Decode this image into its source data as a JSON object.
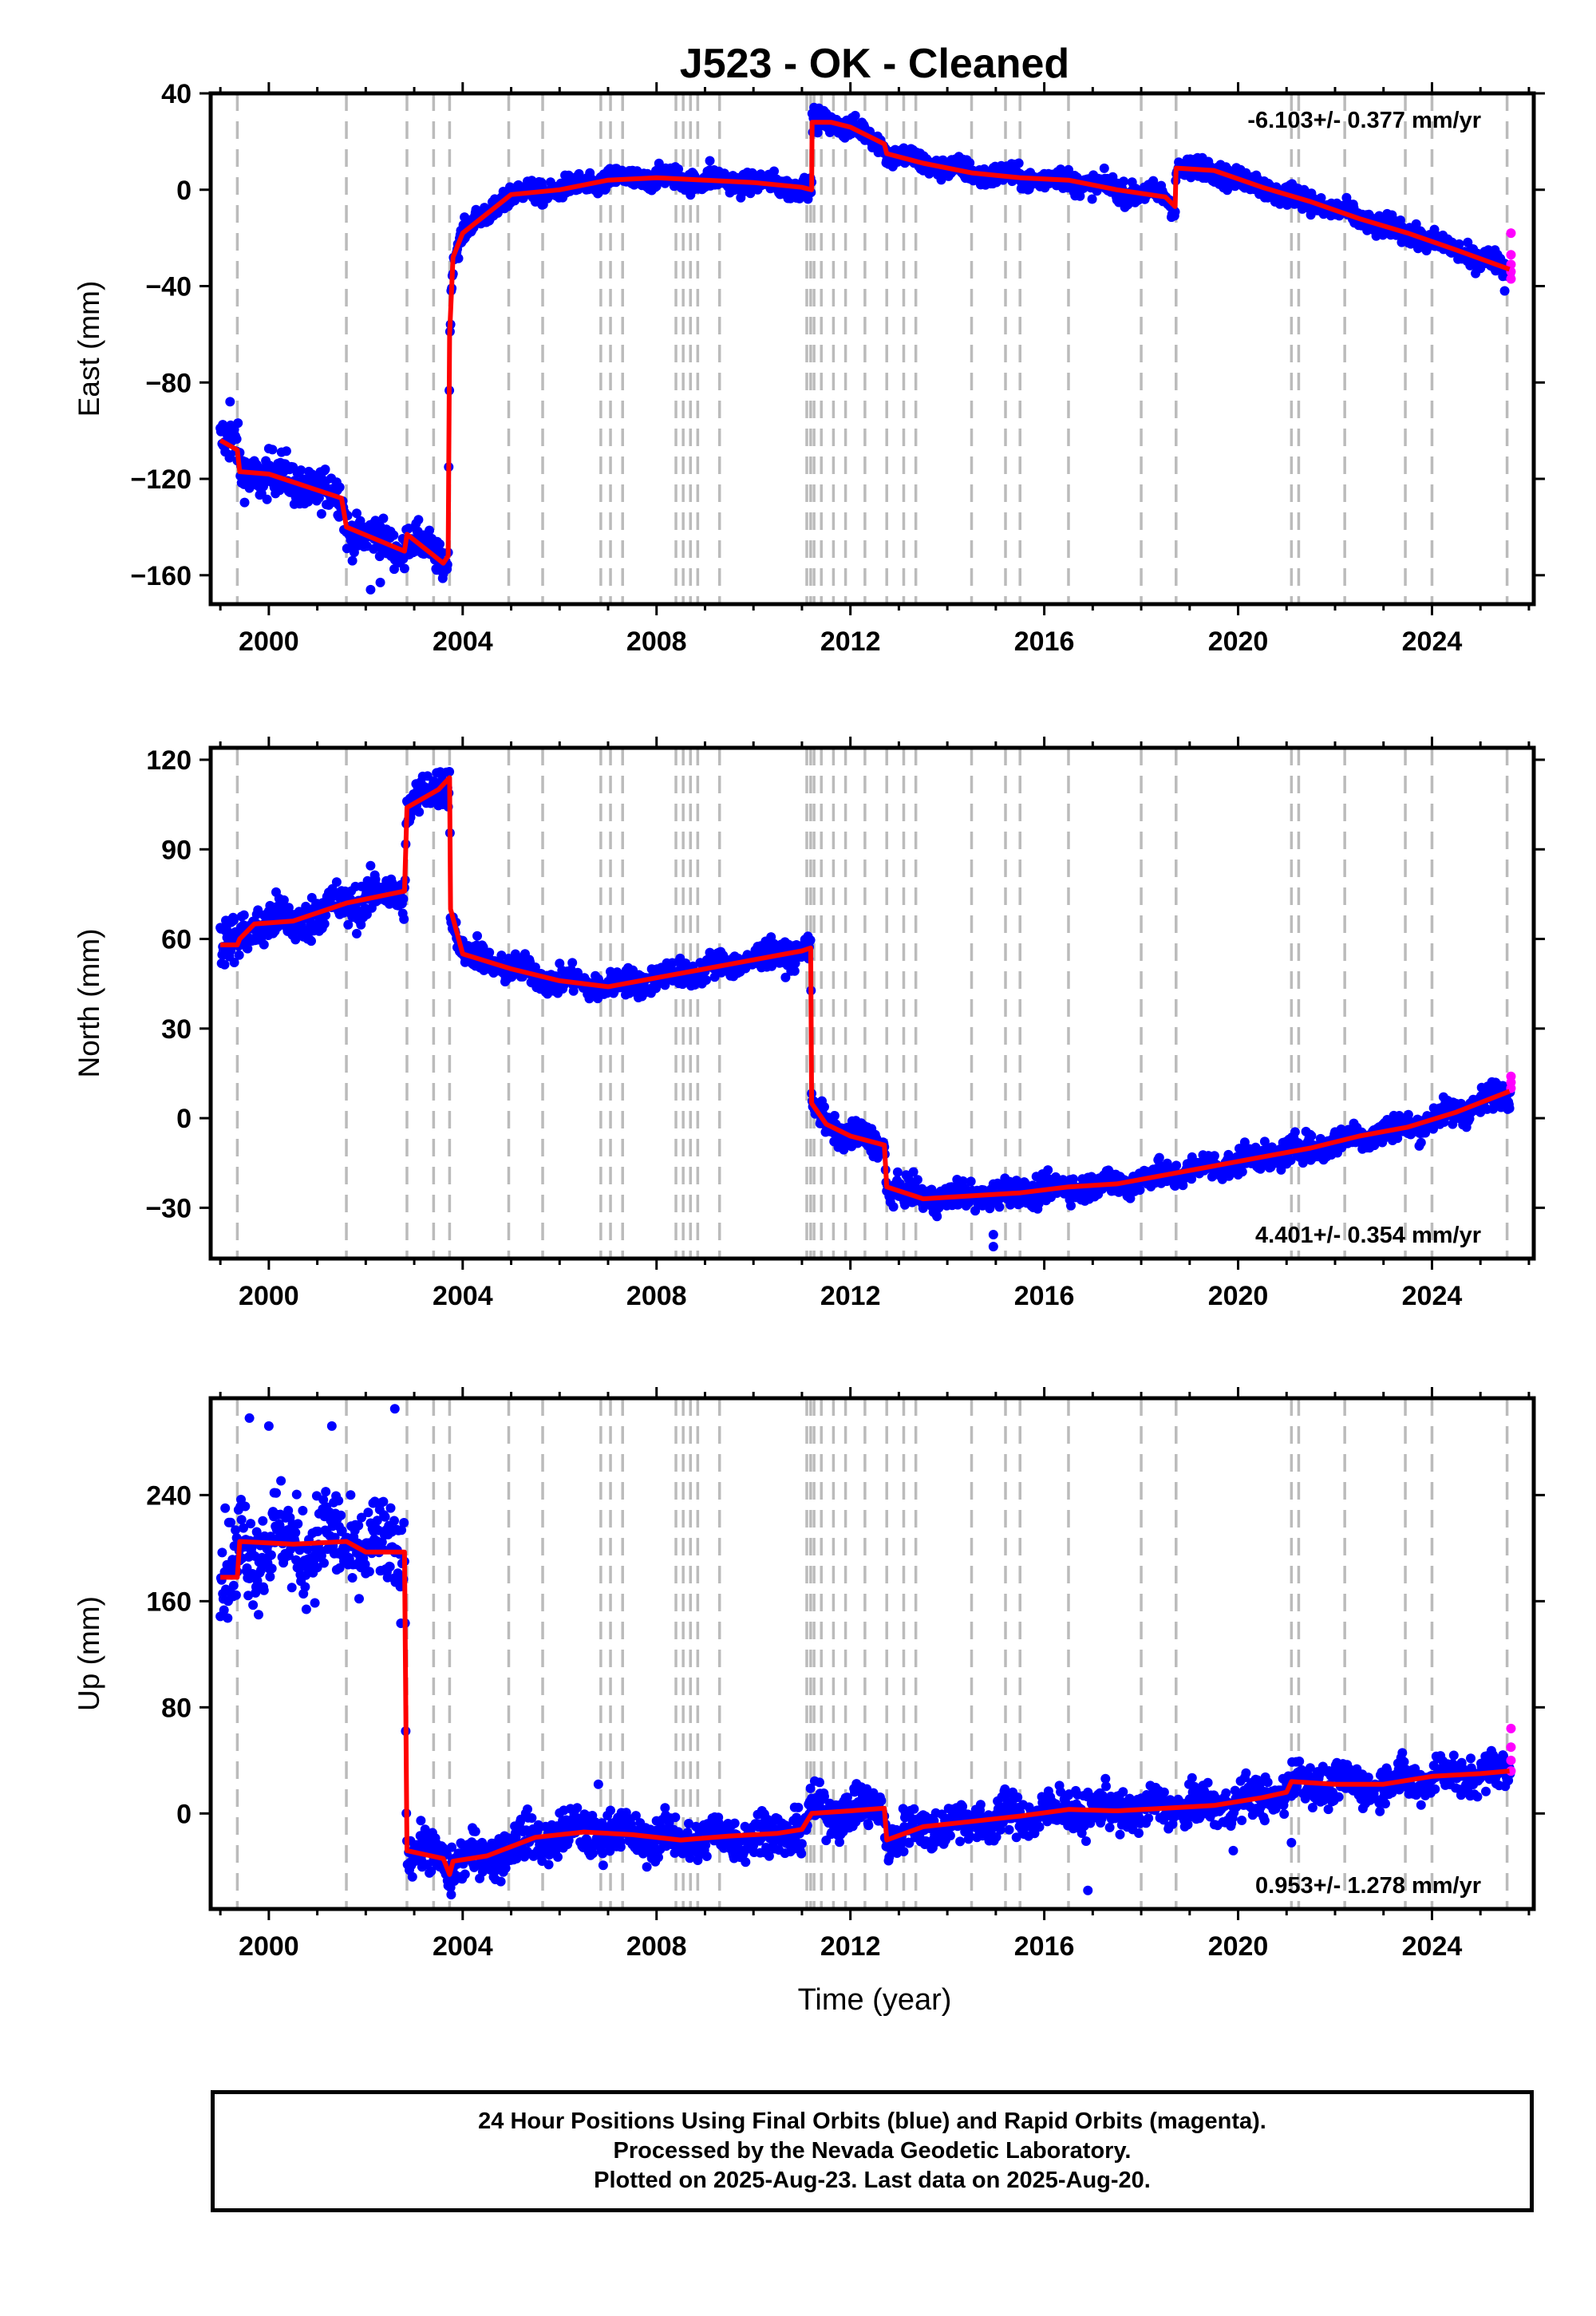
{
  "title": "J523  - OK - Cleaned",
  "x_label": "Time (year)",
  "footer": {
    "line1": "24 Hour Positions Using Final Orbits (blue) and Rapid Orbits (magenta).",
    "line2": "Processed by the Nevada Geodetic Laboratory.",
    "line3": "Plotted on 2025-Aug-23. Last data on 2025-Aug-20."
  },
  "colors": {
    "final_orbits": "#0000ff",
    "rapid_orbits": "#ff00ff",
    "model": "#ff0000",
    "event_lines": "#bbbbbb"
  },
  "chart_data": [
    {
      "type": "scatter",
      "component": "east",
      "ylabel": "East (mm)",
      "rate": "-6.103+/- 0.377 mm/yr",
      "rate_position": "top-right",
      "xlim": [
        1998.8,
        2026.1
      ],
      "ylim": [
        -172,
        40
      ],
      "xticks": [
        2000,
        2004,
        2008,
        2012,
        2016,
        2020,
        2024
      ],
      "yticks": [
        40,
        0,
        -40,
        -80,
        -120,
        -160
      ],
      "model_knots": [
        [
          1999.0,
          -104
        ],
        [
          1999.35,
          -108
        ],
        [
          1999.4,
          -117
        ],
        [
          2000,
          -118
        ],
        [
          2001.5,
          -128
        ],
        [
          2001.6,
          -140
        ],
        [
          2002.8,
          -150
        ],
        [
          2002.85,
          -143
        ],
        [
          2003.6,
          -155
        ],
        [
          2003.7,
          -152
        ],
        [
          2003.73,
          -60
        ],
        [
          2003.8,
          -28
        ],
        [
          2004.0,
          -18
        ],
        [
          2004.5,
          -10
        ],
        [
          2005.0,
          -2
        ],
        [
          2006.0,
          0
        ],
        [
          2007.0,
          4
        ],
        [
          2008.0,
          5
        ],
        [
          2009.0,
          4
        ],
        [
          2010.0,
          3
        ],
        [
          2011.0,
          1
        ],
        [
          2011.2,
          0
        ],
        [
          2011.21,
          28
        ],
        [
          2011.6,
          28
        ],
        [
          2012.0,
          26
        ],
        [
          2012.7,
          19
        ],
        [
          2012.75,
          15
        ],
        [
          2013.5,
          11
        ],
        [
          2014.5,
          7
        ],
        [
          2015.5,
          5
        ],
        [
          2016.5,
          4
        ],
        [
          2017.5,
          0
        ],
        [
          2018.5,
          -3
        ],
        [
          2018.7,
          -7
        ],
        [
          2018.72,
          9
        ],
        [
          2019.5,
          8
        ],
        [
          2020.5,
          1
        ],
        [
          2021.5,
          -5
        ],
        [
          2022.5,
          -12
        ],
        [
          2023.5,
          -18
        ],
        [
          2024.5,
          -25
        ],
        [
          2025.6,
          -33
        ]
      ],
      "spread": [
        [
          1999.0,
          9
        ],
        [
          2003.7,
          6
        ],
        [
          2003.8,
          4
        ],
        [
          2025.6,
          4
        ]
      ],
      "outliers": [
        [
          2002.1,
          -166
        ],
        [
          2002.3,
          -163
        ],
        [
          1999.2,
          -88
        ],
        [
          2009.1,
          12
        ],
        [
          2025.5,
          -42
        ]
      ],
      "rapid_points": [
        [
          2025.63,
          -18
        ],
        [
          2025.63,
          -27
        ],
        [
          2025.63,
          -31
        ],
        [
          2025.63,
          -34
        ],
        [
          2025.63,
          -37
        ]
      ],
      "events": [
        1999.35,
        2001.6,
        2002.85,
        2003.4,
        2003.73,
        2004.95,
        2005.65,
        2006.85,
        2007.05,
        2007.3,
        2008.4,
        2008.55,
        2008.7,
        2008.85,
        2009.3,
        2011.1,
        2011.18,
        2011.25,
        2011.4,
        2011.65,
        2011.9,
        2012.3,
        2012.75,
        2013.1,
        2013.35,
        2014.5,
        2015.2,
        2015.5,
        2016.5,
        2018.0,
        2018.72,
        2021.1,
        2021.25,
        2022.2,
        2023.45,
        2024.0,
        2025.55
      ]
    },
    {
      "type": "scatter",
      "component": "north",
      "ylabel": "North (mm)",
      "rate": "4.401+/- 0.354 mm/yr",
      "rate_position": "bottom-right",
      "xlim": [
        1998.8,
        2026.1
      ],
      "ylim": [
        -47,
        124
      ],
      "xticks": [
        2000,
        2004,
        2008,
        2012,
        2016,
        2020,
        2024
      ],
      "yticks": [
        120,
        90,
        60,
        30,
        0,
        -30
      ],
      "model_knots": [
        [
          1999.0,
          58
        ],
        [
          1999.35,
          58
        ],
        [
          1999.4,
          60
        ],
        [
          1999.7,
          65
        ],
        [
          2000.5,
          66
        ],
        [
          2001.6,
          72
        ],
        [
          2002.8,
          76
        ],
        [
          2002.85,
          104
        ],
        [
          2003.5,
          110
        ],
        [
          2003.73,
          114
        ],
        [
          2003.75,
          70
        ],
        [
          2004.0,
          55
        ],
        [
          2005.0,
          50
        ],
        [
          2006.0,
          46
        ],
        [
          2007.0,
          44
        ],
        [
          2008.0,
          47
        ],
        [
          2009.0,
          50
        ],
        [
          2010.0,
          53
        ],
        [
          2011.0,
          56
        ],
        [
          2011.18,
          57
        ],
        [
          2011.2,
          5
        ],
        [
          2011.5,
          -2
        ],
        [
          2012.0,
          -6
        ],
        [
          2012.7,
          -9
        ],
        [
          2012.75,
          -23
        ],
        [
          2013.5,
          -27
        ],
        [
          2014.5,
          -26
        ],
        [
          2015.5,
          -25
        ],
        [
          2016.5,
          -23
        ],
        [
          2017.5,
          -22
        ],
        [
          2018.5,
          -19
        ],
        [
          2019.5,
          -16
        ],
        [
          2020.5,
          -13
        ],
        [
          2021.5,
          -10
        ],
        [
          2022.5,
          -6
        ],
        [
          2023.5,
          -3
        ],
        [
          2024.5,
          2
        ],
        [
          2025.6,
          9
        ]
      ],
      "spread": [
        [
          1999.0,
          7
        ],
        [
          2003.7,
          6
        ],
        [
          2003.8,
          4
        ],
        [
          2025.6,
          4
        ]
      ],
      "outliers": [
        [
          2014.95,
          -39
        ],
        [
          2014.95,
          -43
        ],
        [
          2004.3,
          61
        ]
      ],
      "rapid_points": [
        [
          2025.63,
          10
        ],
        [
          2025.63,
          12
        ],
        [
          2025.63,
          14
        ]
      ],
      "events": [
        1999.35,
        2001.6,
        2002.85,
        2003.4,
        2003.73,
        2004.95,
        2005.65,
        2006.85,
        2007.05,
        2007.3,
        2008.4,
        2008.55,
        2008.7,
        2008.85,
        2009.3,
        2011.1,
        2011.18,
        2011.25,
        2011.4,
        2011.65,
        2011.9,
        2012.3,
        2012.75,
        2013.1,
        2013.35,
        2014.5,
        2015.2,
        2015.5,
        2016.5,
        2018.0,
        2018.72,
        2021.1,
        2021.25,
        2022.2,
        2023.45,
        2024.0,
        2025.55
      ]
    },
    {
      "type": "scatter",
      "component": "up",
      "ylabel": "Up (mm)",
      "rate": "0.953+/- 1.278 mm/yr",
      "rate_position": "bottom-right",
      "xlim": [
        1998.8,
        2026.1
      ],
      "ylim": [
        -72,
        313
      ],
      "xticks": [
        2000,
        2004,
        2008,
        2012,
        2016,
        2020,
        2024
      ],
      "yticks": [
        240,
        160,
        80,
        0
      ],
      "model_knots": [
        [
          1999.0,
          178
        ],
        [
          1999.35,
          178
        ],
        [
          1999.4,
          205
        ],
        [
          2000.5,
          203
        ],
        [
          2001.6,
          205
        ],
        [
          2002.0,
          197
        ],
        [
          2002.8,
          197
        ],
        [
          2002.85,
          -28
        ],
        [
          2003.6,
          -34
        ],
        [
          2003.73,
          -46
        ],
        [
          2003.8,
          -36
        ],
        [
          2004.5,
          -32
        ],
        [
          2005.5,
          -18
        ],
        [
          2006.5,
          -14
        ],
        [
          2007.5,
          -16
        ],
        [
          2008.5,
          -20
        ],
        [
          2009.5,
          -17
        ],
        [
          2010.5,
          -15
        ],
        [
          2011.0,
          -12
        ],
        [
          2011.2,
          0
        ],
        [
          2012.0,
          2
        ],
        [
          2012.7,
          4
        ],
        [
          2012.75,
          -20
        ],
        [
          2013.5,
          -10
        ],
        [
          2014.5,
          -6
        ],
        [
          2015.5,
          -2
        ],
        [
          2016.5,
          3
        ],
        [
          2017.5,
          2
        ],
        [
          2018.5,
          4
        ],
        [
          2019.5,
          6
        ],
        [
          2020.5,
          12
        ],
        [
          2021.0,
          16
        ],
        [
          2021.1,
          24
        ],
        [
          2022.0,
          22
        ],
        [
          2023.0,
          22
        ],
        [
          2024.0,
          28
        ],
        [
          2025.0,
          30
        ],
        [
          2025.6,
          32
        ]
      ],
      "spread": [
        [
          1999.0,
          34
        ],
        [
          2002.8,
          30
        ],
        [
          2002.85,
          15
        ],
        [
          2025.6,
          13
        ]
      ],
      "outliers": [
        [
          2002.6,
          305
        ],
        [
          1999.6,
          298
        ],
        [
          2000.0,
          292
        ],
        [
          2001.3,
          292
        ],
        [
          2016.9,
          -58
        ],
        [
          2006.8,
          22
        ],
        [
          2019.9,
          -28
        ],
        [
          2021.1,
          -22
        ]
      ],
      "rapid_points": [
        [
          2025.63,
          32
        ],
        [
          2025.63,
          40
        ],
        [
          2025.63,
          50
        ],
        [
          2025.63,
          64
        ]
      ],
      "events": [
        1999.35,
        2001.6,
        2002.85,
        2003.4,
        2003.73,
        2004.95,
        2005.65,
        2006.85,
        2007.05,
        2007.3,
        2008.4,
        2008.55,
        2008.7,
        2008.85,
        2009.3,
        2011.1,
        2011.18,
        2011.25,
        2011.4,
        2011.65,
        2011.9,
        2012.3,
        2012.75,
        2013.1,
        2013.35,
        2014.5,
        2015.2,
        2015.5,
        2016.5,
        2018.0,
        2018.72,
        2021.1,
        2021.25,
        2022.2,
        2023.45,
        2024.0,
        2025.55
      ]
    }
  ]
}
